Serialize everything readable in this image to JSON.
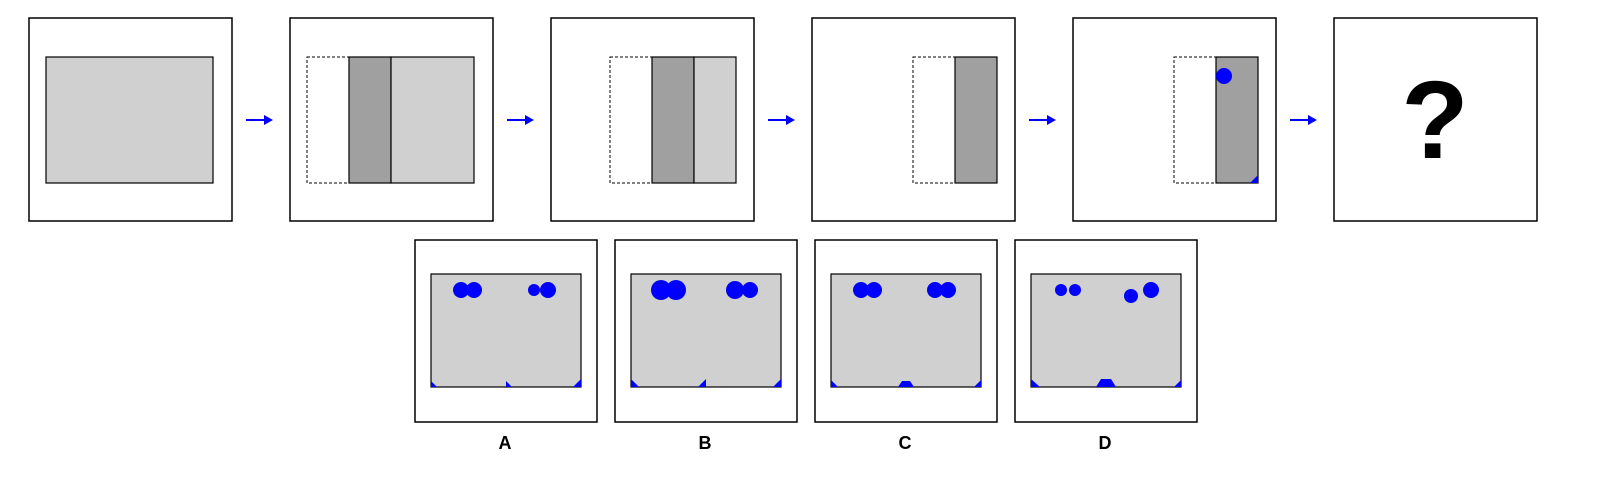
{
  "question_mark": "?",
  "options": [
    {
      "label": "A"
    },
    {
      "label": "B"
    },
    {
      "label": "C"
    },
    {
      "label": "D"
    }
  ],
  "colors": {
    "paper": "#d0d0d0",
    "paper_folded": "#a0a0a0",
    "hole": "#0000ff",
    "arrow": "#0000ff"
  }
}
